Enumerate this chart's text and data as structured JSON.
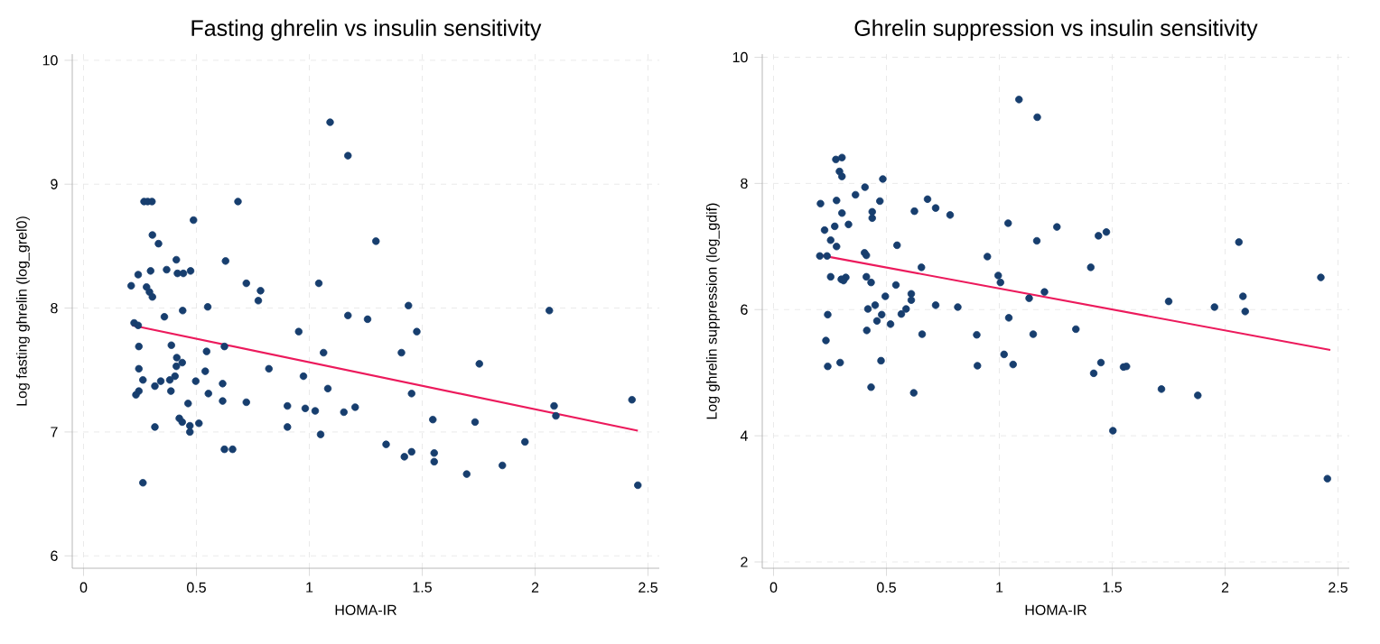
{
  "chart_data": [
    {
      "type": "scatter",
      "title": "Fasting ghrelin vs insulin sensitivity",
      "xlabel": "HOMA-IR",
      "ylabel": "Log fasting ghrelin (log_grel0)",
      "xlim": [
        -0.05,
        2.55
      ],
      "ylim": [
        5.9,
        10.05
      ],
      "xticks": [
        0,
        0.5,
        1,
        1.5,
        2,
        2.5
      ],
      "yticks": [
        6,
        7,
        8,
        9,
        10
      ],
      "grid": true,
      "series": [
        {
          "marker": "circle",
          "color": "#173e6e",
          "x": [
            1.092,
            1.171,
            0.268,
            0.284,
            0.303,
            0.684,
            0.487,
            0.305,
            0.332,
            1.295,
            0.411,
            0.629,
            0.242,
            0.297,
            0.368,
            0.416,
            0.442,
            0.474,
            0.211,
            0.279,
            0.292,
            0.305,
            0.721,
            0.784,
            0.774,
            1.042,
            0.439,
            0.55,
            0.358,
            1.171,
            1.258,
            1.439,
            2.063,
            0.224,
            0.242,
            0.953,
            1.476,
            0.245,
            0.389,
            0.624,
            0.545,
            1.063,
            1.408,
            0.413,
            0.437,
            0.411,
            0.245,
            0.821,
            0.539,
            1.753,
            0.405,
            0.382,
            0.342,
            0.316,
            0.263,
            0.497,
            0.616,
            0.974,
            0.387,
            0.245,
            0.232,
            0.553,
            1.082,
            1.453,
            0.463,
            0.616,
            0.721,
            0.903,
            0.982,
            1.026,
            1.203,
            1.153,
            2.084,
            2.092,
            2.429,
            0.424,
            0.437,
            0.316,
            0.471,
            0.471,
            0.511,
            0.903,
            1.547,
            1.734,
            1.05,
            1.34,
            1.955,
            0.624,
            0.66,
            1.421,
            1.453,
            1.553,
            1.553,
            1.855,
            1.697,
            0.263,
            2.455
          ],
          "values": [
            9.5,
            9.23,
            8.86,
            8.86,
            8.86,
            8.86,
            8.71,
            8.59,
            8.52,
            8.54,
            8.39,
            8.38,
            8.27,
            8.3,
            8.31,
            8.28,
            8.28,
            8.3,
            8.18,
            8.17,
            8.13,
            8.09,
            8.2,
            8.14,
            8.06,
            8.2,
            7.98,
            8.01,
            7.93,
            7.94,
            7.91,
            8.02,
            7.98,
            7.88,
            7.86,
            7.81,
            7.81,
            7.69,
            7.7,
            7.69,
            7.65,
            7.64,
            7.64,
            7.6,
            7.56,
            7.53,
            7.51,
            7.51,
            7.49,
            7.55,
            7.45,
            7.42,
            7.41,
            7.37,
            7.42,
            7.41,
            7.39,
            7.45,
            7.33,
            7.33,
            7.3,
            7.31,
            7.35,
            7.31,
            7.23,
            7.25,
            7.24,
            7.21,
            7.19,
            7.17,
            7.2,
            7.16,
            7.21,
            7.13,
            7.26,
            7.11,
            7.08,
            7.04,
            7.05,
            7.0,
            7.07,
            7.04,
            7.1,
            7.08,
            6.98,
            6.9,
            6.92,
            6.86,
            6.86,
            6.8,
            6.84,
            6.83,
            6.76,
            6.73,
            6.66,
            6.59,
            6.57
          ]
        },
        {
          "type": "line",
          "marker": "none",
          "color": "#ec1a5c",
          "x": [
            0.216,
            2.455
          ],
          "values": [
            7.86,
            7.01
          ]
        }
      ]
    },
    {
      "type": "scatter",
      "title": "Ghrelin suppression vs insulin sensitivity",
      "xlabel": "HOMA-IR",
      "ylabel": "Log ghrelin suppression (log_gdif)",
      "xlim": [
        -0.05,
        2.55
      ],
      "ylim": [
        1.9,
        10.05
      ],
      "xticks": [
        0,
        0.5,
        1,
        1.5,
        2,
        2.5
      ],
      "yticks": [
        2,
        4,
        6,
        8,
        10
      ],
      "grid": true,
      "series": [
        {
          "marker": "circle",
          "color": "#173e6e",
          "x": [
            1.087,
            1.168,
            0.276,
            0.303,
            0.292,
            0.303,
            0.484,
            0.208,
            0.279,
            0.363,
            0.405,
            0.471,
            0.303,
            0.437,
            0.437,
            0.624,
            0.682,
            0.718,
            0.782,
            0.226,
            0.271,
            0.332,
            0.253,
            0.279,
            0.547,
            0.403,
            0.411,
            0.205,
            0.237,
            1.039,
            1.166,
            1.255,
            1.439,
            1.474,
            2.061,
            0.947,
            0.655,
            1.405,
            0.253,
            0.3,
            0.32,
            0.31,
            0.411,
            0.432,
            0.995,
            1.005,
            2.424,
            0.542,
            0.495,
            0.61,
            0.61,
            1.2,
            1.132,
            1.75,
            2.079,
            2.089,
            0.718,
            0.816,
            0.418,
            0.45,
            0.587,
            0.566,
            0.479,
            0.24,
            1.953,
            0.458,
            0.518,
            1.042,
            0.413,
            1.339,
            0.658,
            0.9,
            1.15,
            0.232,
            1.021,
            0.24,
            0.295,
            0.476,
            0.903,
            1.061,
            1.45,
            1.418,
            1.55,
            1.563,
            0.432,
            0.621,
            1.718,
            1.879,
            1.503,
            2.453
          ],
          "values": [
            9.33,
            9.05,
            8.38,
            8.41,
            8.19,
            8.11,
            8.07,
            7.68,
            7.73,
            7.82,
            7.94,
            7.72,
            7.53,
            7.55,
            7.45,
            7.56,
            7.75,
            7.61,
            7.5,
            7.26,
            7.32,
            7.35,
            7.1,
            7.0,
            7.02,
            6.9,
            6.86,
            6.85,
            6.85,
            7.37,
            7.09,
            7.31,
            7.17,
            7.23,
            7.07,
            6.84,
            6.67,
            6.67,
            6.52,
            6.48,
            6.51,
            6.46,
            6.52,
            6.43,
            6.54,
            6.43,
            6.51,
            6.39,
            6.21,
            6.25,
            6.15,
            6.28,
            6.18,
            6.13,
            6.21,
            5.97,
            6.07,
            6.04,
            6.01,
            6.07,
            6.01,
            5.93,
            5.92,
            5.92,
            6.04,
            5.82,
            5.77,
            5.87,
            5.67,
            5.69,
            5.61,
            5.6,
            5.61,
            5.51,
            5.29,
            5.1,
            5.16,
            5.19,
            5.11,
            5.13,
            5.16,
            4.99,
            5.09,
            5.1,
            4.77,
            4.68,
            4.74,
            4.64,
            4.08,
            3.32
          ]
        },
        {
          "type": "line",
          "marker": "none",
          "color": "#ec1a5c",
          "x": [
            0.21,
            2.466
          ],
          "values": [
            6.86,
            5.36
          ]
        }
      ]
    }
  ]
}
